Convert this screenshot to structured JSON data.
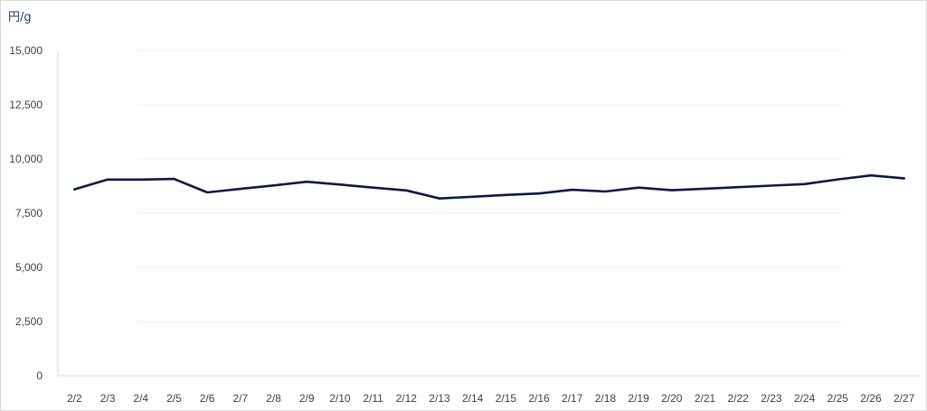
{
  "chart_data": {
    "type": "line",
    "title": "",
    "xlabel": "",
    "ylabel": "円/g",
    "ylim": [
      0,
      15000
    ],
    "yticks": [
      "0",
      "2,500",
      "5,000",
      "7,500",
      "10,000",
      "12,500",
      "15,000"
    ],
    "ytick_values": [
      0,
      2500,
      5000,
      7500,
      10000,
      12500,
      15000
    ],
    "grid": true,
    "legend": "none",
    "colors": {
      "line": "#0d1a45",
      "grid": "#eeeeee",
      "axis": "#d9d9d9"
    },
    "categories": [
      "2/2",
      "2/3",
      "2/4",
      "2/5",
      "2/6",
      "2/7",
      "2/8",
      "2/9",
      "2/10",
      "2/11",
      "2/12",
      "2/13",
      "2/14",
      "2/15",
      "2/16",
      "2/17",
      "2/18",
      "2/19",
      "2/20",
      "2/21",
      "2/22",
      "2/23",
      "2/24",
      "2/25",
      "2/26",
      "2/27"
    ],
    "series": [
      {
        "values": [
          8600,
          9050,
          9050,
          9080,
          8460,
          8620,
          8780,
          8950,
          8820,
          8680,
          8550,
          8180,
          8260,
          8340,
          8410,
          8580,
          8500,
          8680,
          8560,
          8630,
          8700,
          8770,
          8840,
          9060,
          9240,
          9110
        ]
      }
    ]
  }
}
